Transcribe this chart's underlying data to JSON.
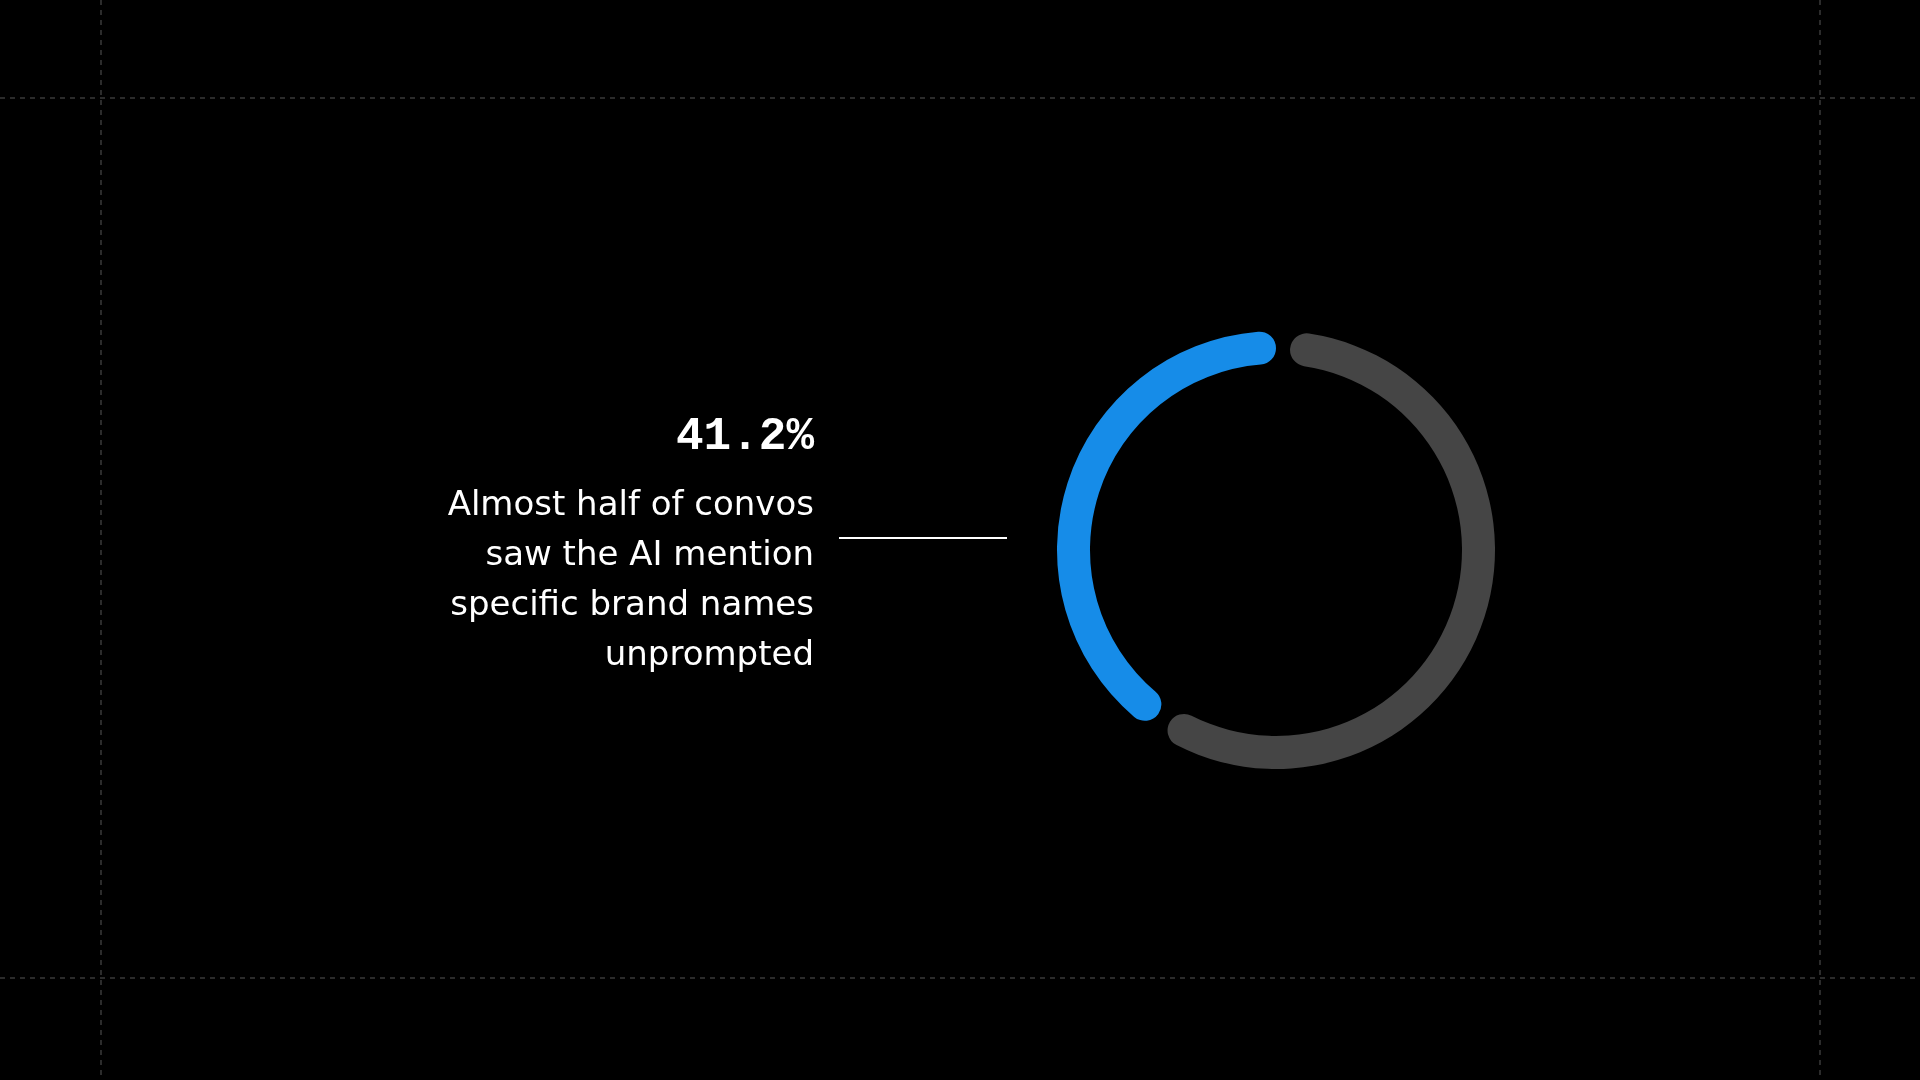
{
  "chart_data": {
    "type": "donut",
    "categories": [
      null,
      null
    ],
    "values": [
      41.2,
      58.8
    ],
    "colors": [
      "#168ce8",
      "#454545"
    ],
    "annotations": [
      "41.2%",
      "Almost half of convos\nsaw the AI mention\nspecific brand names\nunprompted"
    ]
  }
}
